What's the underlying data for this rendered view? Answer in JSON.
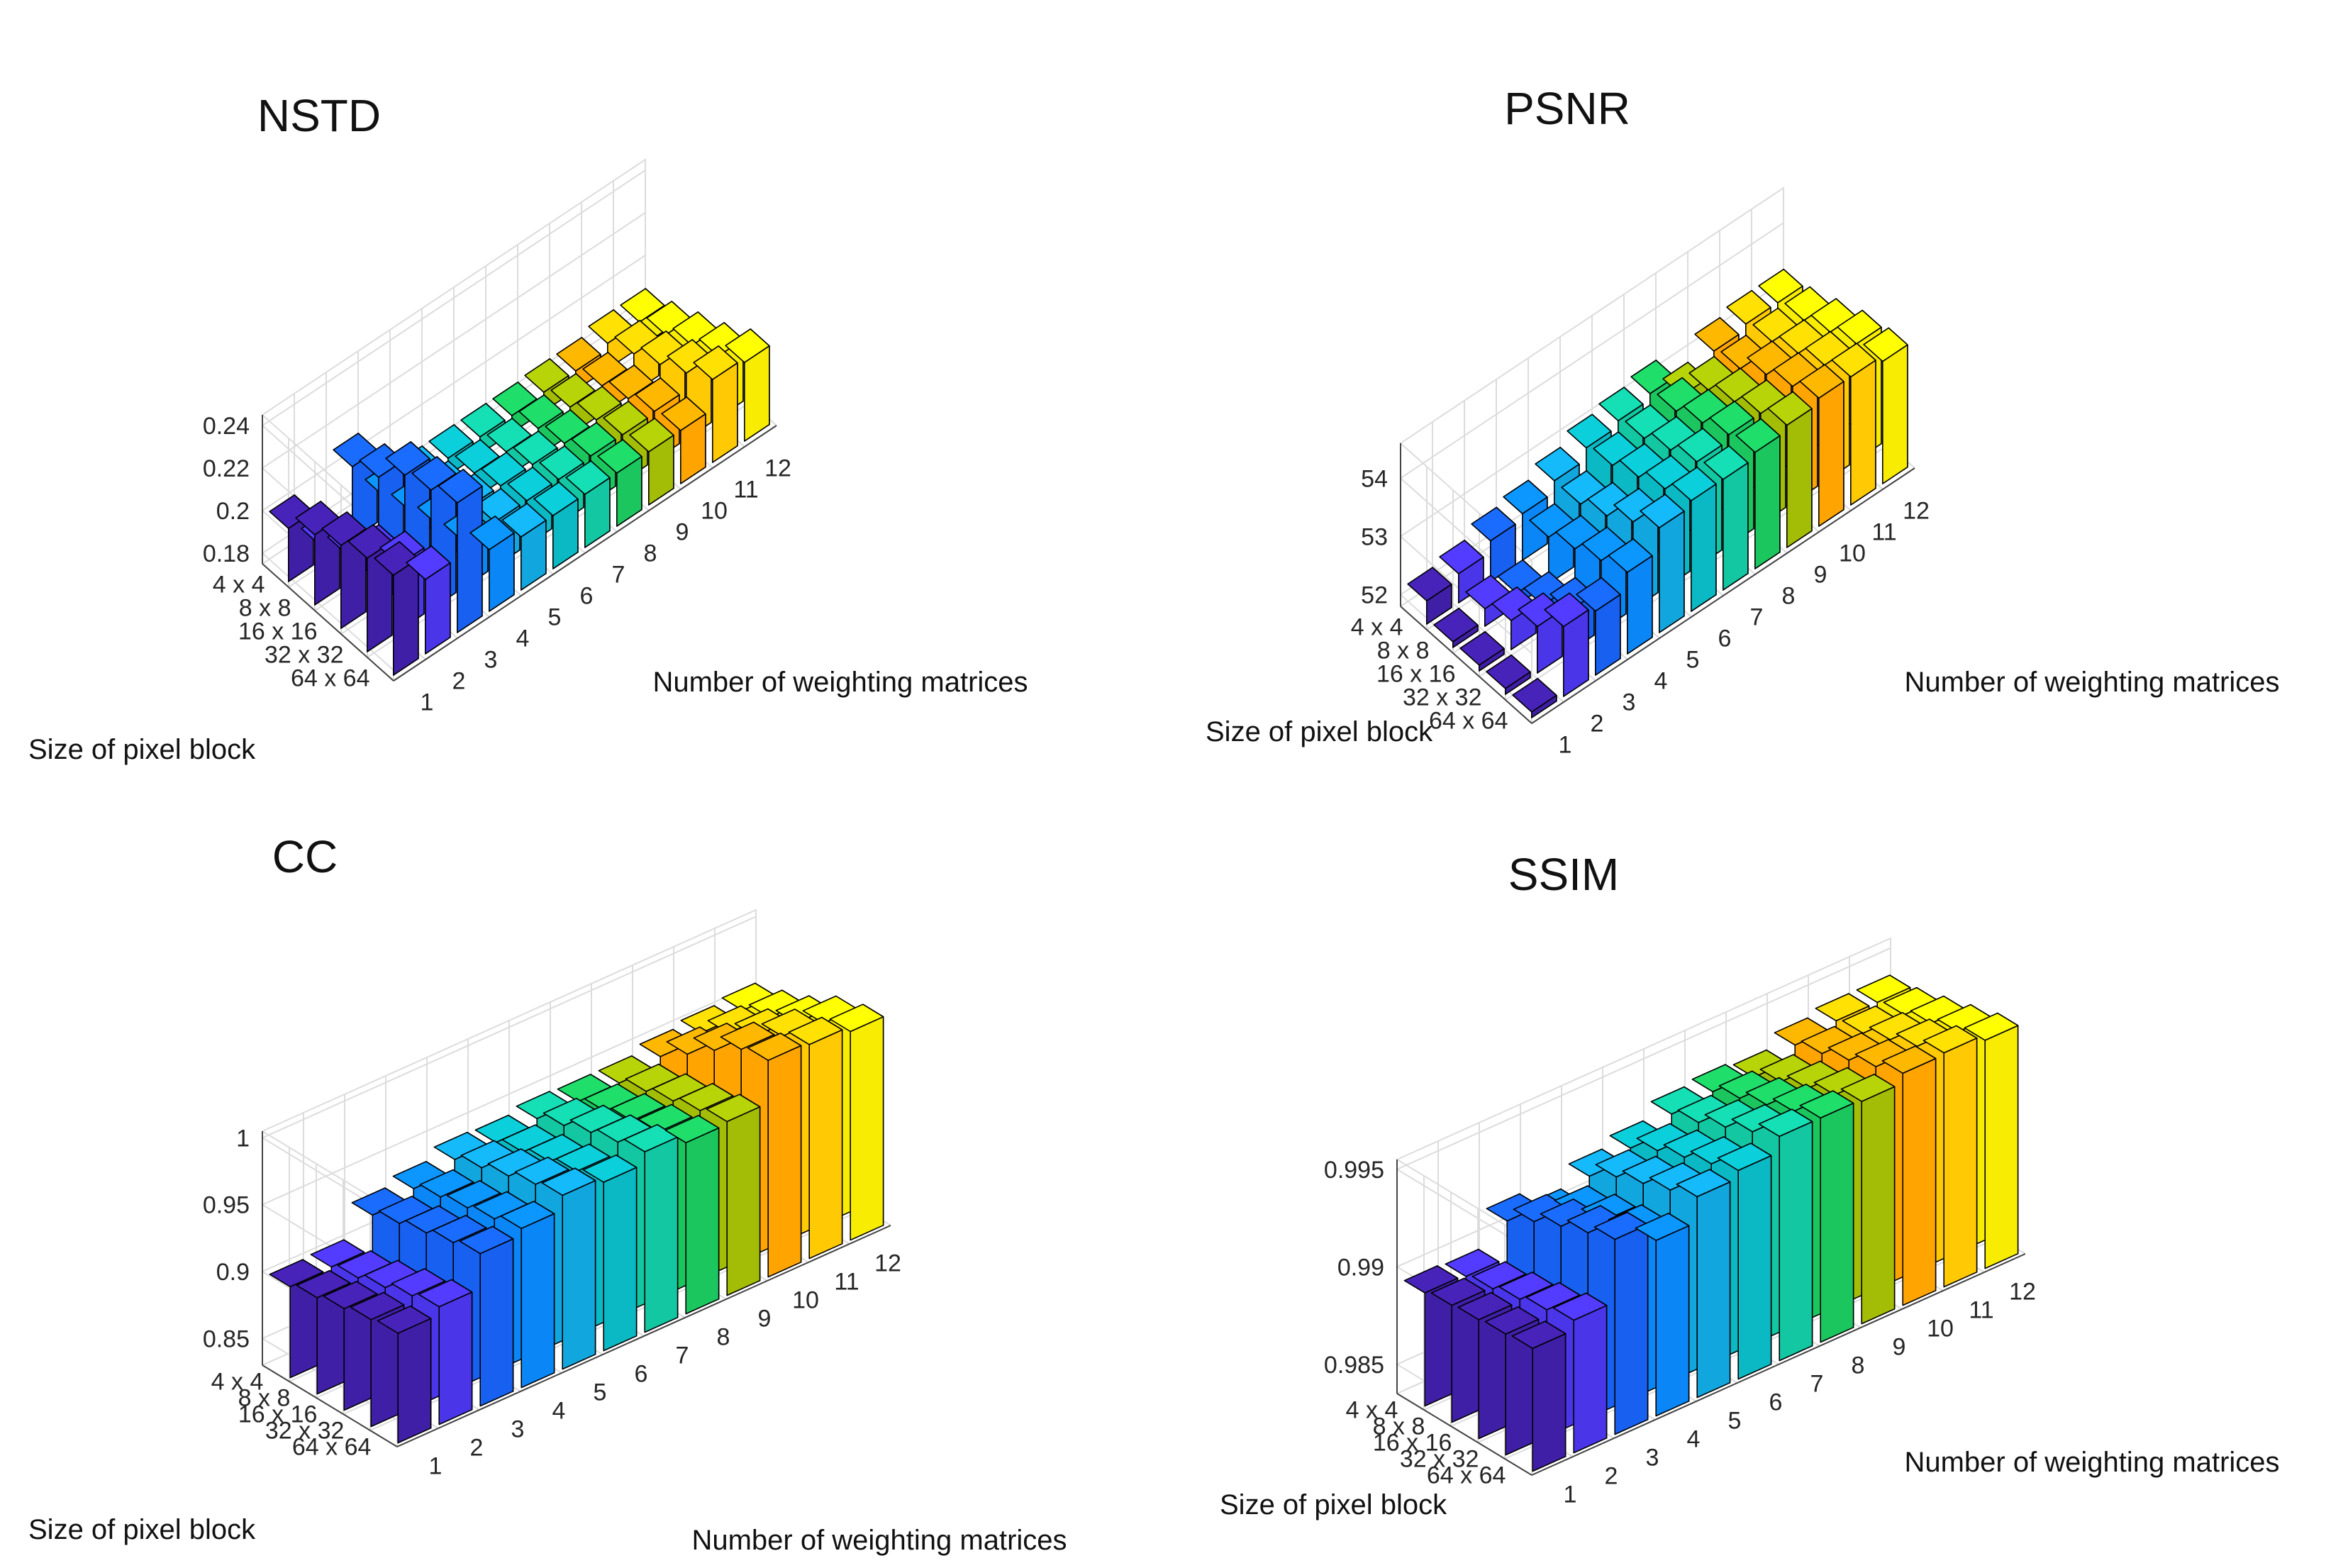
{
  "figure": {
    "x_axis_label": "Number of weighting matrices",
    "y_axis_label": "Size of pixel block",
    "matrices": [
      "1",
      "2",
      "3",
      "4",
      "5",
      "6",
      "7",
      "8",
      "9",
      "10",
      "11",
      "12"
    ],
    "block_sizes": [
      "64 x 64",
      "32 x 32",
      "16 x 16",
      "8 x 8",
      "4 x 4"
    ],
    "palette": [
      "#3f1fa6",
      "#4a35e8",
      "#1760f0",
      "#0b86f6",
      "#12a6df",
      "#0bb9c4",
      "#12c7a2",
      "#1cc65f",
      "#a3bd07",
      "#ffa400",
      "#ffc904",
      "#f8ec02"
    ]
  },
  "chart_data": [
    {
      "type": "bar3d",
      "title": "NSTD",
      "xlabel": "Number of weighting matrices",
      "ylabel": "Size of pixel block",
      "zlim": [
        0.175,
        0.245
      ],
      "zticks": [
        "0.18",
        "0.2",
        "0.22",
        "0.24"
      ],
      "zticks_values": [
        0.18,
        0.2,
        0.22,
        0.24
      ],
      "series": [
        {
          "name": "64 x 64",
          "values": [
            0.222,
            0.21,
            0.236,
            0.204,
            0.2,
            0.2,
            0.2,
            0.2,
            0.2,
            0.2,
            0.214,
            0.212
          ]
        },
        {
          "name": "32 x 32",
          "values": [
            0.219,
            0.206,
            0.231,
            0.197,
            0.196,
            0.196,
            0.196,
            0.197,
            0.197,
            0.198,
            0.206,
            0.204
          ]
        },
        {
          "name": "16 x 16",
          "values": [
            0.214,
            0.198,
            0.227,
            0.194,
            0.192,
            0.192,
            0.192,
            0.192,
            0.193,
            0.193,
            0.199,
            0.198
          ]
        },
        {
          "name": "8 x 8",
          "values": [
            0.208,
            0.189,
            0.215,
            0.189,
            0.187,
            0.187,
            0.187,
            0.188,
            0.188,
            0.188,
            0.193,
            0.192
          ]
        },
        {
          "name": "4 x 4",
          "values": [
            0.2,
            0.182,
            0.209,
            0.185,
            0.183,
            0.183,
            0.183,
            0.183,
            0.184,
            0.184,
            0.187,
            0.187
          ]
        }
      ]
    },
    {
      "type": "bar3d",
      "title": "PSNR",
      "xlabel": "Number of weighting matrices",
      "ylabel": "Size of pixel block",
      "zlim": [
        51.8,
        54.6
      ],
      "zticks": [
        "52",
        "53",
        "54"
      ],
      "zticks_values": [
        52,
        53,
        54
      ],
      "series": [
        {
          "name": "64 x 64",
          "values": [
            51.9,
            53.0,
            52.9,
            53.2,
            53.6,
            53.7,
            53.7,
            53.8,
            53.9,
            54.0,
            54.0,
            53.9
          ]
        },
        {
          "name": "32 x 32",
          "values": [
            51.9,
            52.6,
            52.5,
            53.0,
            53.3,
            53.5,
            53.6,
            53.7,
            53.7,
            53.8,
            53.8,
            53.8
          ]
        },
        {
          "name": "16 x 16",
          "values": [
            51.9,
            52.3,
            52.2,
            52.8,
            53.0,
            53.3,
            53.4,
            53.5,
            53.5,
            53.6,
            53.6,
            53.6
          ]
        },
        {
          "name": "8 x 8",
          "values": [
            51.9,
            52.1,
            52.0,
            52.6,
            52.8,
            53.1,
            53.2,
            53.3,
            53.3,
            53.3,
            53.4,
            53.4
          ]
        },
        {
          "name": "4 x 4",
          "values": [
            52.2,
            52.3,
            52.5,
            52.6,
            52.8,
            53.0,
            53.1,
            53.2,
            52.8,
            53.2,
            53.3,
            53.3
          ]
        }
      ]
    },
    {
      "type": "bar3d",
      "title": "CC",
      "xlabel": "Number of weighting matrices",
      "ylabel": "Size of pixel block",
      "zlim": [
        0.83,
        1.005
      ],
      "zticks": [
        "0.85",
        "0.9",
        "0.95",
        "1"
      ],
      "zticks_values": [
        0.85,
        0.9,
        0.95,
        1.0
      ],
      "series": [
        {
          "name": "64 x 64",
          "values": [
            0.912,
            0.918,
            0.944,
            0.949,
            0.96,
            0.956,
            0.965,
            0.958,
            0.96,
            0.992,
            0.99,
            0.986
          ]
        },
        {
          "name": "32 x 32",
          "values": [
            0.91,
            0.914,
            0.94,
            0.944,
            0.956,
            0.952,
            0.96,
            0.954,
            0.956,
            0.988,
            0.984,
            0.98
          ]
        },
        {
          "name": "16 x 16",
          "values": [
            0.906,
            0.908,
            0.935,
            0.94,
            0.95,
            0.947,
            0.955,
            0.95,
            0.951,
            0.975,
            0.972,
            0.968
          ]
        },
        {
          "name": "8 x 8",
          "values": [
            0.902,
            0.903,
            0.93,
            0.936,
            0.944,
            0.942,
            0.948,
            0.945,
            0.946,
            0.96,
            0.962,
            0.96
          ]
        },
        {
          "name": "4 x 4",
          "values": [
            0.898,
            0.899,
            0.924,
            0.93,
            0.938,
            0.937,
            0.941,
            0.94,
            0.94,
            0.946,
            0.95,
            0.953
          ]
        }
      ]
    },
    {
      "type": "bar3d",
      "title": "SSIM",
      "xlabel": "Number of weighting matrices",
      "ylabel": "Size of pixel block",
      "zlim": [
        0.9835,
        0.9955
      ],
      "zticks": [
        "0.985",
        "0.99",
        "0.995"
      ],
      "zticks_values": [
        0.985,
        0.99,
        0.995
      ],
      "series": [
        {
          "name": "64 x 64",
          "values": [
            0.9898,
            0.9903,
            0.9935,
            0.9925,
            0.9938,
            0.9942,
            0.995,
            0.995,
            0.9949,
            0.9954,
            0.9955,
            0.9952
          ]
        },
        {
          "name": "32 x 32",
          "values": [
            0.9897,
            0.99,
            0.993,
            0.9921,
            0.9933,
            0.9937,
            0.9944,
            0.9945,
            0.9944,
            0.9949,
            0.995,
            0.9948
          ]
        },
        {
          "name": "16 x 16",
          "values": [
            0.9896,
            0.9897,
            0.9925,
            0.9918,
            0.9928,
            0.9932,
            0.9938,
            0.994,
            0.9939,
            0.9944,
            0.9945,
            0.9944
          ]
        },
        {
          "name": "8 x 8",
          "values": [
            0.9895,
            0.9894,
            0.9919,
            0.9914,
            0.9923,
            0.9927,
            0.9932,
            0.9935,
            0.9934,
            0.9939,
            0.994,
            0.994
          ]
        },
        {
          "name": "4 x 4",
          "values": [
            0.9893,
            0.9892,
            0.9911,
            0.9904,
            0.9915,
            0.992,
            0.9928,
            0.993,
            0.9928,
            0.9935,
            0.9938,
            0.9938
          ]
        }
      ]
    }
  ]
}
